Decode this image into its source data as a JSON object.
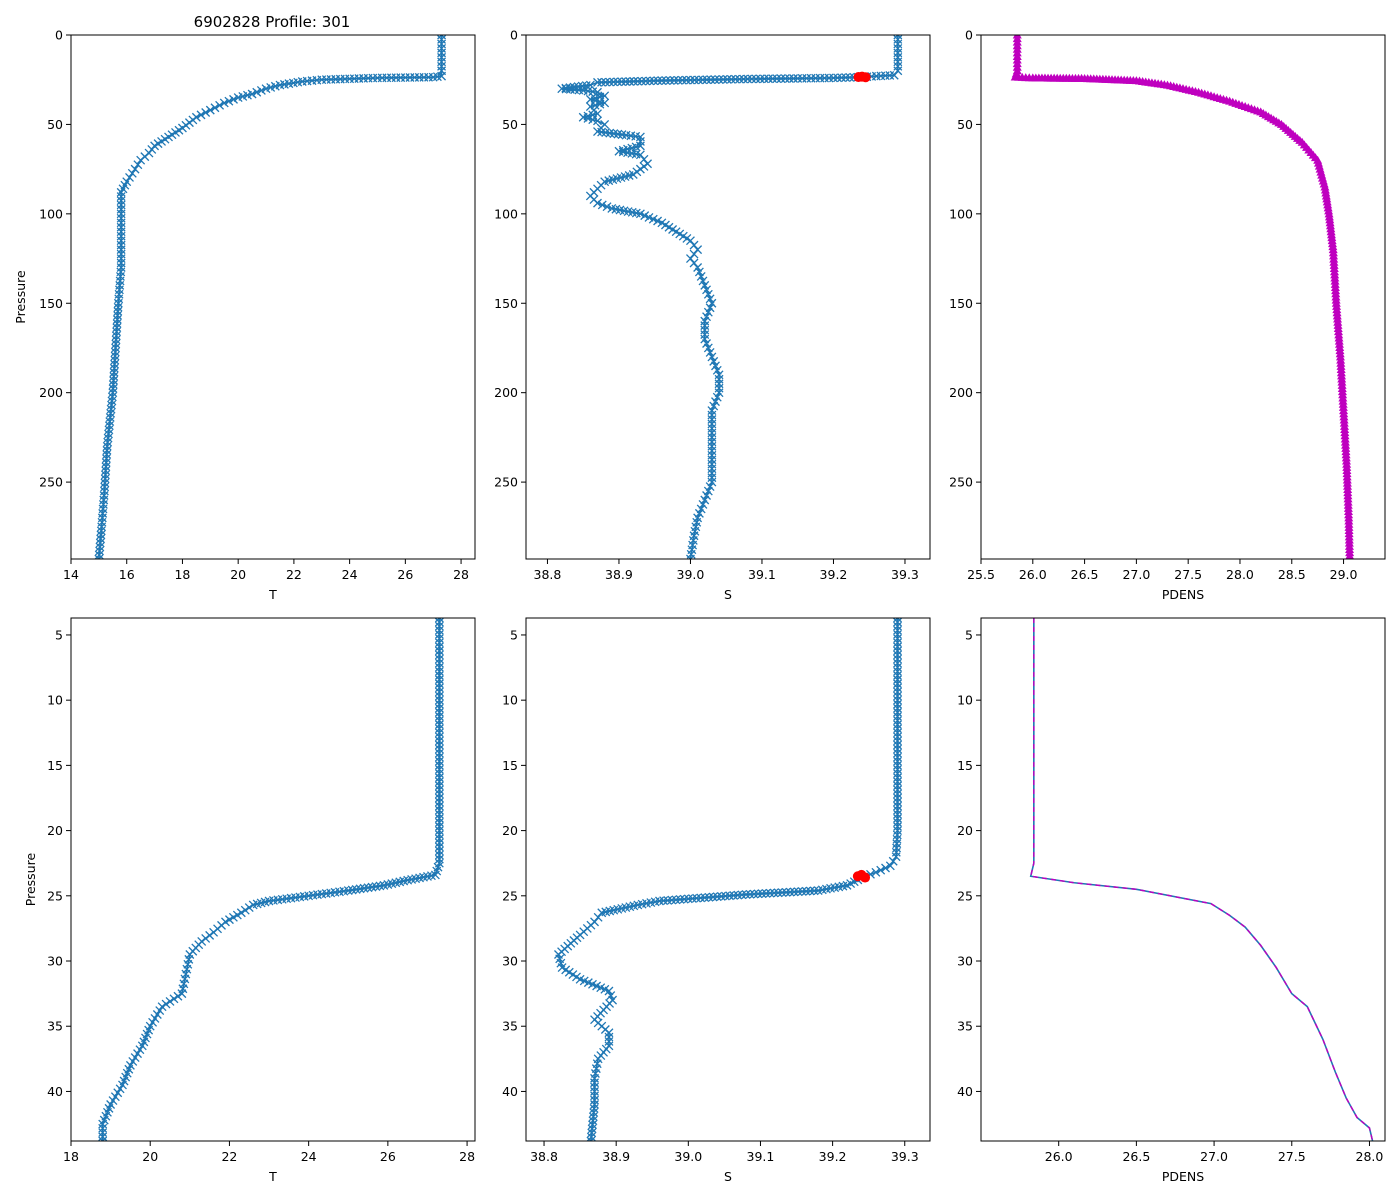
{
  "figure_title": "6902828 Profile: 301",
  "colors": {
    "series": "#1f77b4",
    "highlight": "#ff0000",
    "density": "#bf00bf",
    "density_line": "#1f77b4",
    "dashed": "#bf00bf"
  },
  "chart_data": [
    {
      "id": "temp-full",
      "type": "line",
      "title": "6902828 Profile: 301",
      "xlabel": "T",
      "ylabel": "Pressure",
      "xlim": [
        14,
        28.5
      ],
      "ylim": [
        293,
        0
      ],
      "xticks": [
        "14",
        "16",
        "18",
        "20",
        "22",
        "24",
        "26",
        "28"
      ],
      "yticks": [
        "0",
        "50",
        "100",
        "150",
        "200",
        "250"
      ],
      "marker": "x",
      "series": [
        {
          "name": "T",
          "points": [
            [
              27.3,
              0
            ],
            [
              27.3,
              10
            ],
            [
              27.3,
              20
            ],
            [
              27.3,
              23
            ],
            [
              27.0,
              23.6
            ],
            [
              26.0,
              23.8
            ],
            [
              25.0,
              24
            ],
            [
              24.0,
              24.5
            ],
            [
              23.0,
              25
            ],
            [
              22.3,
              26
            ],
            [
              21.5,
              28
            ],
            [
              21.0,
              30
            ],
            [
              20.5,
              33
            ],
            [
              20.0,
              35
            ],
            [
              19.5,
              38
            ],
            [
              19.0,
              42
            ],
            [
              18.5,
              46
            ],
            [
              18.0,
              52
            ],
            [
              17.5,
              57
            ],
            [
              17.0,
              62
            ],
            [
              16.8,
              66
            ],
            [
              16.5,
              70
            ],
            [
              16.3,
              75
            ],
            [
              16.0,
              82
            ],
            [
              15.8,
              88
            ],
            [
              15.8,
              95
            ],
            [
              15.8,
              110
            ],
            [
              15.8,
              130
            ],
            [
              15.7,
              150
            ],
            [
              15.6,
              175
            ],
            [
              15.5,
              200
            ],
            [
              15.3,
              230
            ],
            [
              15.2,
              255
            ],
            [
              15.1,
              275
            ],
            [
              15.0,
              293
            ]
          ]
        }
      ]
    },
    {
      "id": "sal-full",
      "type": "line",
      "title": "",
      "xlabel": "S",
      "ylabel": "",
      "xlim": [
        38.77,
        39.335
      ],
      "ylim": [
        293,
        0
      ],
      "xticks": [
        "38.8",
        "38.9",
        "39.0",
        "39.1",
        "39.2",
        "39.3"
      ],
      "yticks": [
        "0",
        "50",
        "100",
        "150",
        "200",
        "250"
      ],
      "marker": "x",
      "series": [
        {
          "name": "S",
          "points": [
            [
              39.29,
              0
            ],
            [
              39.29,
              10
            ],
            [
              39.29,
              20
            ],
            [
              39.285,
              22.5
            ],
            [
              39.26,
              23
            ],
            [
              39.24,
              23.5
            ],
            [
              39.2,
              24
            ],
            [
              39.15,
              24.3
            ],
            [
              39.08,
              24.6
            ],
            [
              38.96,
              25.5
            ],
            [
              38.87,
              26.5
            ],
            [
              38.86,
              28
            ],
            [
              38.82,
              30
            ],
            [
              38.85,
              31
            ],
            [
              38.87,
              32
            ],
            [
              38.88,
              34
            ],
            [
              38.86,
              36
            ],
            [
              38.88,
              38
            ],
            [
              38.86,
              40
            ],
            [
              38.87,
              44
            ],
            [
              38.85,
              46
            ],
            [
              38.87,
              48
            ],
            [
              38.88,
              50
            ],
            [
              38.87,
              54
            ],
            [
              38.91,
              56
            ],
            [
              38.93,
              57
            ],
            [
              38.93,
              62
            ],
            [
              38.9,
              65
            ],
            [
              38.93,
              67
            ],
            [
              38.94,
              72
            ],
            [
              38.92,
              78
            ],
            [
              38.88,
              82
            ],
            [
              38.87,
              86
            ],
            [
              38.86,
              90
            ],
            [
              38.87,
              94
            ],
            [
              38.89,
              97
            ],
            [
              38.93,
              100
            ],
            [
              38.96,
              105
            ],
            [
              38.98,
              110
            ],
            [
              39.0,
              115
            ],
            [
              39.01,
              120
            ],
            [
              39.0,
              125
            ],
            [
              39.01,
              130
            ],
            [
              39.02,
              140
            ],
            [
              39.03,
              150
            ],
            [
              39.02,
              160
            ],
            [
              39.02,
              170
            ],
            [
              39.03,
              180
            ],
            [
              39.04,
              190
            ],
            [
              39.04,
              200
            ],
            [
              39.03,
              210
            ],
            [
              39.03,
              220
            ],
            [
              39.03,
              230
            ],
            [
              39.03,
              240
            ],
            [
              39.03,
              250
            ],
            [
              39.02,
              260
            ],
            [
              39.01,
              270
            ],
            [
              39.005,
              280
            ],
            [
              39.0,
              293
            ]
          ]
        }
      ],
      "highlight_points": [
        [
          39.24,
          23.3
        ],
        [
          39.235,
          23.5
        ],
        [
          39.245,
          23.6
        ]
      ]
    },
    {
      "id": "dens-full",
      "type": "line",
      "title": "",
      "xlabel": "PDENS",
      "ylabel": "",
      "xlim": [
        25.5,
        29.4
      ],
      "ylim": [
        293,
        0
      ],
      "xticks": [
        "25.5",
        "26.0",
        "26.5",
        "27.0",
        "27.5",
        "28.0",
        "28.5",
        "29.0"
      ],
      "yticks": [
        "0",
        "50",
        "100",
        "150",
        "200",
        "250"
      ],
      "marker": "triangle",
      "series": [
        {
          "name": "PDENS",
          "points": [
            [
              25.85,
              0
            ],
            [
              25.85,
              10
            ],
            [
              25.85,
              20
            ],
            [
              25.83,
              23.5
            ],
            [
              26.0,
              24
            ],
            [
              26.5,
              24.3
            ],
            [
              27.0,
              25.5
            ],
            [
              27.3,
              28
            ],
            [
              27.6,
              32
            ],
            [
              27.9,
              37
            ],
            [
              28.2,
              43
            ],
            [
              28.4,
              50
            ],
            [
              28.6,
              60
            ],
            [
              28.75,
              70
            ],
            [
              28.82,
              85
            ],
            [
              28.86,
              100
            ],
            [
              28.9,
              120
            ],
            [
              28.93,
              150
            ],
            [
              28.97,
              180
            ],
            [
              29.0,
              210
            ],
            [
              29.03,
              240
            ],
            [
              29.05,
              270
            ],
            [
              29.06,
              293
            ]
          ]
        }
      ]
    },
    {
      "id": "temp-zoom",
      "type": "line",
      "title": "",
      "xlabel": "T",
      "ylabel": "Pressure",
      "xlim": [
        18,
        28.2
      ],
      "ylim": [
        43.8,
        3.7
      ],
      "xticks": [
        "18",
        "20",
        "22",
        "24",
        "26",
        "28"
      ],
      "yticks": [
        "5",
        "10",
        "15",
        "20",
        "25",
        "30",
        "35",
        "40"
      ],
      "marker": "x",
      "series": [
        {
          "name": "T",
          "points": [
            [
              27.3,
              3.7
            ],
            [
              27.3,
              10
            ],
            [
              27.3,
              15
            ],
            [
              27.3,
              20
            ],
            [
              27.3,
              22.5
            ],
            [
              27.2,
              23.4
            ],
            [
              26.5,
              23.8
            ],
            [
              25.9,
              24.2
            ],
            [
              25.0,
              24.6
            ],
            [
              24.0,
              25.0
            ],
            [
              23.0,
              25.4
            ],
            [
              22.6,
              25.7
            ],
            [
              22.3,
              26.3
            ],
            [
              21.9,
              27.0
            ],
            [
              21.6,
              27.8
            ],
            [
              21.3,
              28.5
            ],
            [
              21.0,
              29.5
            ],
            [
              20.9,
              31.0
            ],
            [
              20.8,
              32.5
            ],
            [
              20.3,
              33.5
            ],
            [
              20.0,
              35.0
            ],
            [
              19.8,
              36.5
            ],
            [
              19.5,
              38.0
            ],
            [
              19.3,
              39.5
            ],
            [
              19.0,
              41.0
            ],
            [
              18.8,
              42.5
            ],
            [
              18.8,
              43.8
            ]
          ]
        }
      ]
    },
    {
      "id": "sal-zoom",
      "type": "line",
      "title": "",
      "xlabel": "S",
      "ylabel": "",
      "xlim": [
        38.775,
        39.335
      ],
      "ylim": [
        43.8,
        3.7
      ],
      "xticks": [
        "38.8",
        "38.9",
        "39.0",
        "39.1",
        "39.2",
        "39.3"
      ],
      "yticks": [
        "5",
        "10",
        "15",
        "20",
        "25",
        "30",
        "35",
        "40"
      ],
      "marker": "x",
      "series": [
        {
          "name": "S",
          "points": [
            [
              39.29,
              3.7
            ],
            [
              39.29,
              10
            ],
            [
              39.29,
              15
            ],
            [
              39.29,
              20
            ],
            [
              39.288,
              22.0
            ],
            [
              39.28,
              22.7
            ],
            [
              39.26,
              23.2
            ],
            [
              39.245,
              23.5
            ],
            [
              39.22,
              24.2
            ],
            [
              39.18,
              24.6
            ],
            [
              39.08,
              24.9
            ],
            [
              38.96,
              25.4
            ],
            [
              38.93,
              25.7
            ],
            [
              38.88,
              26.3
            ],
            [
              38.87,
              27.0
            ],
            [
              38.85,
              28.0
            ],
            [
              38.82,
              29.5
            ],
            [
              38.825,
              30.5
            ],
            [
              38.85,
              31.4
            ],
            [
              38.89,
              32.3
            ],
            [
              38.895,
              33.0
            ],
            [
              38.87,
              34.5
            ],
            [
              38.89,
              35.5
            ],
            [
              38.89,
              36.5
            ],
            [
              38.875,
              37.5
            ],
            [
              38.87,
              39.0
            ],
            [
              38.87,
              41.0
            ],
            [
              38.865,
              43.8
            ]
          ]
        }
      ],
      "highlight_points": [
        [
          39.24,
          23.4
        ],
        [
          39.235,
          23.5
        ],
        [
          39.245,
          23.6
        ]
      ]
    },
    {
      "id": "dens-zoom",
      "type": "line",
      "title": "",
      "xlabel": "PDENS",
      "ylabel": "",
      "xlim": [
        25.5,
        28.1
      ],
      "ylim": [
        43.8,
        3.7
      ],
      "xticks": [
        "26.0",
        "26.5",
        "27.0",
        "27.5",
        "28.0"
      ],
      "yticks": [
        "5",
        "10",
        "15",
        "20",
        "25",
        "30",
        "35",
        "40"
      ],
      "marker": "none",
      "series": [
        {
          "name": "PDENS",
          "points": [
            [
              25.84,
              3.7
            ],
            [
              25.84,
              10
            ],
            [
              25.84,
              15
            ],
            [
              25.84,
              20
            ],
            [
              25.84,
              22.5
            ],
            [
              25.82,
              23.5
            ],
            [
              26.1,
              24.0
            ],
            [
              26.5,
              24.5
            ],
            [
              26.98,
              25.6
            ],
            [
              27.1,
              26.5
            ],
            [
              27.2,
              27.4
            ],
            [
              27.3,
              28.8
            ],
            [
              27.4,
              30.5
            ],
            [
              27.5,
              32.5
            ],
            [
              27.6,
              33.5
            ],
            [
              27.7,
              36.0
            ],
            [
              27.78,
              38.5
            ],
            [
              27.85,
              40.5
            ],
            [
              27.92,
              42.0
            ],
            [
              28.0,
              42.8
            ],
            [
              28.02,
              43.8
            ]
          ]
        }
      ]
    }
  ]
}
